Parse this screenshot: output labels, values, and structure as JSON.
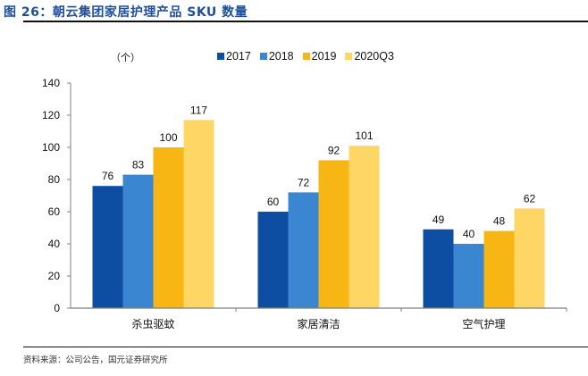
{
  "title": "图 26：朝云集团家居护理产品 SKU 数量",
  "source": "资料来源：公司公告，国元证券研究所",
  "chart_data": {
    "type": "bar",
    "title": "朝云集团家居护理产品 SKU 数量",
    "unit_label": "（个）",
    "xlabel": "",
    "ylabel": "（个）",
    "categories": [
      "杀虫驱蚊",
      "家居清洁",
      "空气护理"
    ],
    "series": [
      {
        "name": "2017",
        "color": "#0d4ea3",
        "values": [
          76,
          60,
          49
        ]
      },
      {
        "name": "2018",
        "color": "#3a86d0",
        "values": [
          83,
          72,
          40
        ]
      },
      {
        "name": "2019",
        "color": "#f7b614",
        "values": [
          100,
          92,
          48
        ]
      },
      {
        "name": "2020Q3",
        "color": "#fdd665",
        "values": [
          117,
          101,
          62
        ]
      }
    ],
    "ylim": [
      0,
      140
    ],
    "yticks": [
      0,
      20,
      40,
      60,
      80,
      100,
      120,
      140
    ],
    "grid": false,
    "legend_position": "top",
    "data_labels": true
  }
}
